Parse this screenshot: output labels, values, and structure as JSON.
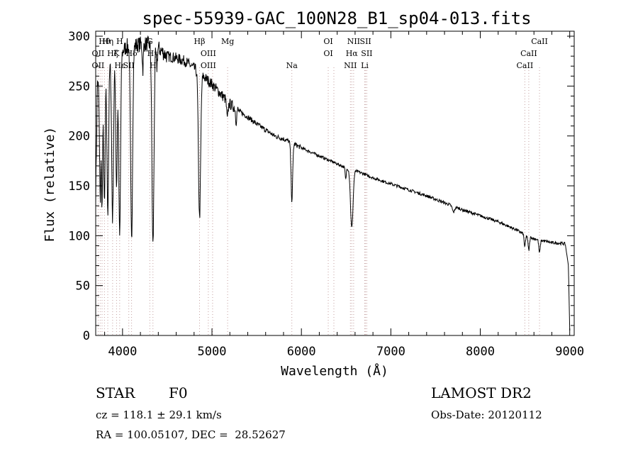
{
  "chart_data": {
    "type": "line",
    "title": "spec-55939-GAC_100N28_B1_sp04-013.fits",
    "xlabel": "Wavelength (Å)",
    "ylabel": "Flux (relative)",
    "xlim": [
      3700,
      9050
    ],
    "ylim": [
      0,
      305
    ],
    "xticks": [
      4000,
      5000,
      6000,
      7000,
      8000,
      9000
    ],
    "yticks": [
      0,
      50,
      100,
      150,
      200,
      250,
      300
    ],
    "continuum": [
      [
        3700,
        140
      ],
      [
        3720,
        255
      ],
      [
        3750,
        240
      ],
      [
        3800,
        265
      ],
      [
        3850,
        272
      ],
      [
        3900,
        278
      ],
      [
        3950,
        282
      ],
      [
        4000,
        285
      ],
      [
        4050,
        290
      ],
      [
        4100,
        290
      ],
      [
        4200,
        292
      ],
      [
        4300,
        292
      ],
      [
        4400,
        288
      ],
      [
        4500,
        280
      ],
      [
        4600,
        278
      ],
      [
        4700,
        275
      ],
      [
        4800,
        268
      ],
      [
        4900,
        260
      ],
      [
        5000,
        252
      ],
      [
        5100,
        242
      ],
      [
        5200,
        232
      ],
      [
        5300,
        225
      ],
      [
        5400,
        219
      ],
      [
        5500,
        212
      ],
      [
        5600,
        206
      ],
      [
        5700,
        200
      ],
      [
        5800,
        197
      ],
      [
        5900,
        193
      ],
      [
        6000,
        188
      ],
      [
        6100,
        184
      ],
      [
        6200,
        180
      ],
      [
        6300,
        176
      ],
      [
        6400,
        172
      ],
      [
        6500,
        168
      ],
      [
        6600,
        165
      ],
      [
        6700,
        162
      ],
      [
        6800,
        158
      ],
      [
        6900,
        155
      ],
      [
        7000,
        152
      ],
      [
        7200,
        146
      ],
      [
        7400,
        140
      ],
      [
        7600,
        133
      ],
      [
        7800,
        126
      ],
      [
        8000,
        120
      ],
      [
        8200,
        114
      ],
      [
        8400,
        106
      ],
      [
        8500,
        101
      ],
      [
        8600,
        97
      ],
      [
        8700,
        95
      ],
      [
        8800,
        93
      ],
      [
        8950,
        92
      ],
      [
        8985,
        70
      ],
      [
        9000,
        5
      ]
    ],
    "absorption_lines": [
      {
        "wave": 3750,
        "depth": 105,
        "width": 7
      },
      {
        "wave": 3771,
        "depth": 120,
        "width": 7
      },
      {
        "wave": 3798,
        "depth": 135,
        "width": 8
      },
      {
        "wave": 3835,
        "depth": 145,
        "width": 9
      },
      {
        "wave": 3889,
        "depth": 160,
        "width": 10
      },
      {
        "wave": 3933,
        "depth": 130,
        "width": 9
      },
      {
        "wave": 3968,
        "depth": 185,
        "width": 10
      },
      {
        "wave": 4101,
        "depth": 195,
        "width": 11
      },
      {
        "wave": 4227,
        "depth": 25,
        "width": 6
      },
      {
        "wave": 4340,
        "depth": 200,
        "width": 11
      },
      {
        "wave": 4383,
        "depth": 20,
        "width": 6
      },
      {
        "wave": 4861,
        "depth": 145,
        "width": 12
      },
      {
        "wave": 5172,
        "depth": 18,
        "width": 8
      },
      {
        "wave": 5270,
        "depth": 12,
        "width": 6
      },
      {
        "wave": 5893,
        "depth": 58,
        "width": 9
      },
      {
        "wave": 6495,
        "depth": 12,
        "width": 6
      },
      {
        "wave": 6563,
        "depth": 58,
        "width": 14
      },
      {
        "wave": 7700,
        "depth": 6,
        "width": 12
      },
      {
        "wave": 8498,
        "depth": 12,
        "width": 8
      },
      {
        "wave": 8542,
        "depth": 14,
        "width": 8
      },
      {
        "wave": 8662,
        "depth": 13,
        "width": 8
      }
    ],
    "line_markers": [
      {
        "label": "Hθ",
        "wave": 3798,
        "row": 0,
        "color": "#c4a0a0"
      },
      {
        "label": "OII",
        "wave": 3727,
        "row": 1,
        "color": "#c4a0a0"
      },
      {
        "label": "OII",
        "wave": 3727,
        "row": 2,
        "color": "#c4a0a0"
      },
      {
        "label": "Hη",
        "wave": 3835,
        "row": 0,
        "color": "#c4a0a0"
      },
      {
        "label": "H",
        "wave": 3968,
        "row": 0,
        "color": "#c4a0a0"
      },
      {
        "label": "K",
        "wave": 3933,
        "row": 1,
        "color": "#c4a0a0"
      },
      {
        "label": "Hε",
        "wave": 3970,
        "row": 2,
        "color": "#c4a0a0"
      },
      {
        "label": "Hζ",
        "wave": 3889,
        "row": 1,
        "color": "#c4a0a0"
      },
      {
        "label": "SII",
        "wave": 4070,
        "row": 2,
        "color": "#c4a0a0"
      },
      {
        "label": "Hδ",
        "wave": 4101,
        "row": 1,
        "color": "#c4a0a0"
      },
      {
        "label": "G",
        "wave": 4305,
        "row": 0,
        "color": "#c4a0a0"
      },
      {
        "label": "Hγ",
        "wave": 4340,
        "row": 1,
        "color": "#c4a0a0"
      },
      {
        "label": "H",
        "wave": 4340,
        "row": 2,
        "color": "#c4a0a0"
      },
      {
        "label": "Hβ",
        "wave": 4861,
        "row": 0,
        "color": "#c4a0a0"
      },
      {
        "label": "OIII",
        "wave": 4959,
        "row": 1,
        "color": "#c4a0a0"
      },
      {
        "label": "OIII",
        "wave": 4959,
        "row": 2,
        "color": "#c4a0a0"
      },
      {
        "label": "Mg",
        "wave": 5175,
        "row": 0,
        "color": "#c4a0a0"
      },
      {
        "label": "Na",
        "wave": 5893,
        "row": 2,
        "color": "#c4a0a0"
      },
      {
        "label": "OI",
        "wave": 6300,
        "row": 0,
        "color": "#c4a0a0"
      },
      {
        "label": "OI",
        "wave": 6300,
        "row": 1,
        "color": "#c4a0a0"
      },
      {
        "label": "NII",
        "wave": 6584,
        "row": 0,
        "color": "#c4a0a0"
      },
      {
        "label": "SII",
        "wave": 6717,
        "row": 0,
        "color": "#c4a0a0"
      },
      {
        "label": "Hα",
        "wave": 6563,
        "row": 1,
        "color": "#c4a0a0"
      },
      {
        "label": "SII",
        "wave": 6731,
        "row": 1,
        "color": "#c4a0a0"
      },
      {
        "label": "NII",
        "wave": 6548,
        "row": 2,
        "color": "#c4a0a0"
      },
      {
        "label": "Li",
        "wave": 6708,
        "row": 2,
        "color": "#c4a0a0"
      },
      {
        "label": "CaII",
        "wave": 8662,
        "row": 0,
        "color": "#c4a0a0"
      },
      {
        "label": "CaII",
        "wave": 8542,
        "row": 1,
        "color": "#c4a0a0"
      },
      {
        "label": "CaII",
        "wave": 8498,
        "row": 2,
        "color": "#c4a0a0"
      }
    ],
    "marker_waves": [
      3727,
      3750,
      3771,
      3798,
      3835,
      3889,
      3933,
      3968,
      4070,
      4101,
      4305,
      4340,
      4861,
      4959,
      5007,
      5175,
      5893,
      6300,
      6363,
      6548,
      6563,
      6584,
      6708,
      6717,
      6731,
      8498,
      8542,
      8662
    ],
    "marker_color": "#c4a0a0"
  },
  "info": {
    "object_class": "STAR",
    "subclass": "F0",
    "redshift_line": "cz = 118.1 ± 29.1 km/s",
    "coords_line": "RA = 100.05107, DEC =  28.52627",
    "survey": "LAMOST DR2",
    "obs_date": "Obs-Date: 20120112"
  }
}
